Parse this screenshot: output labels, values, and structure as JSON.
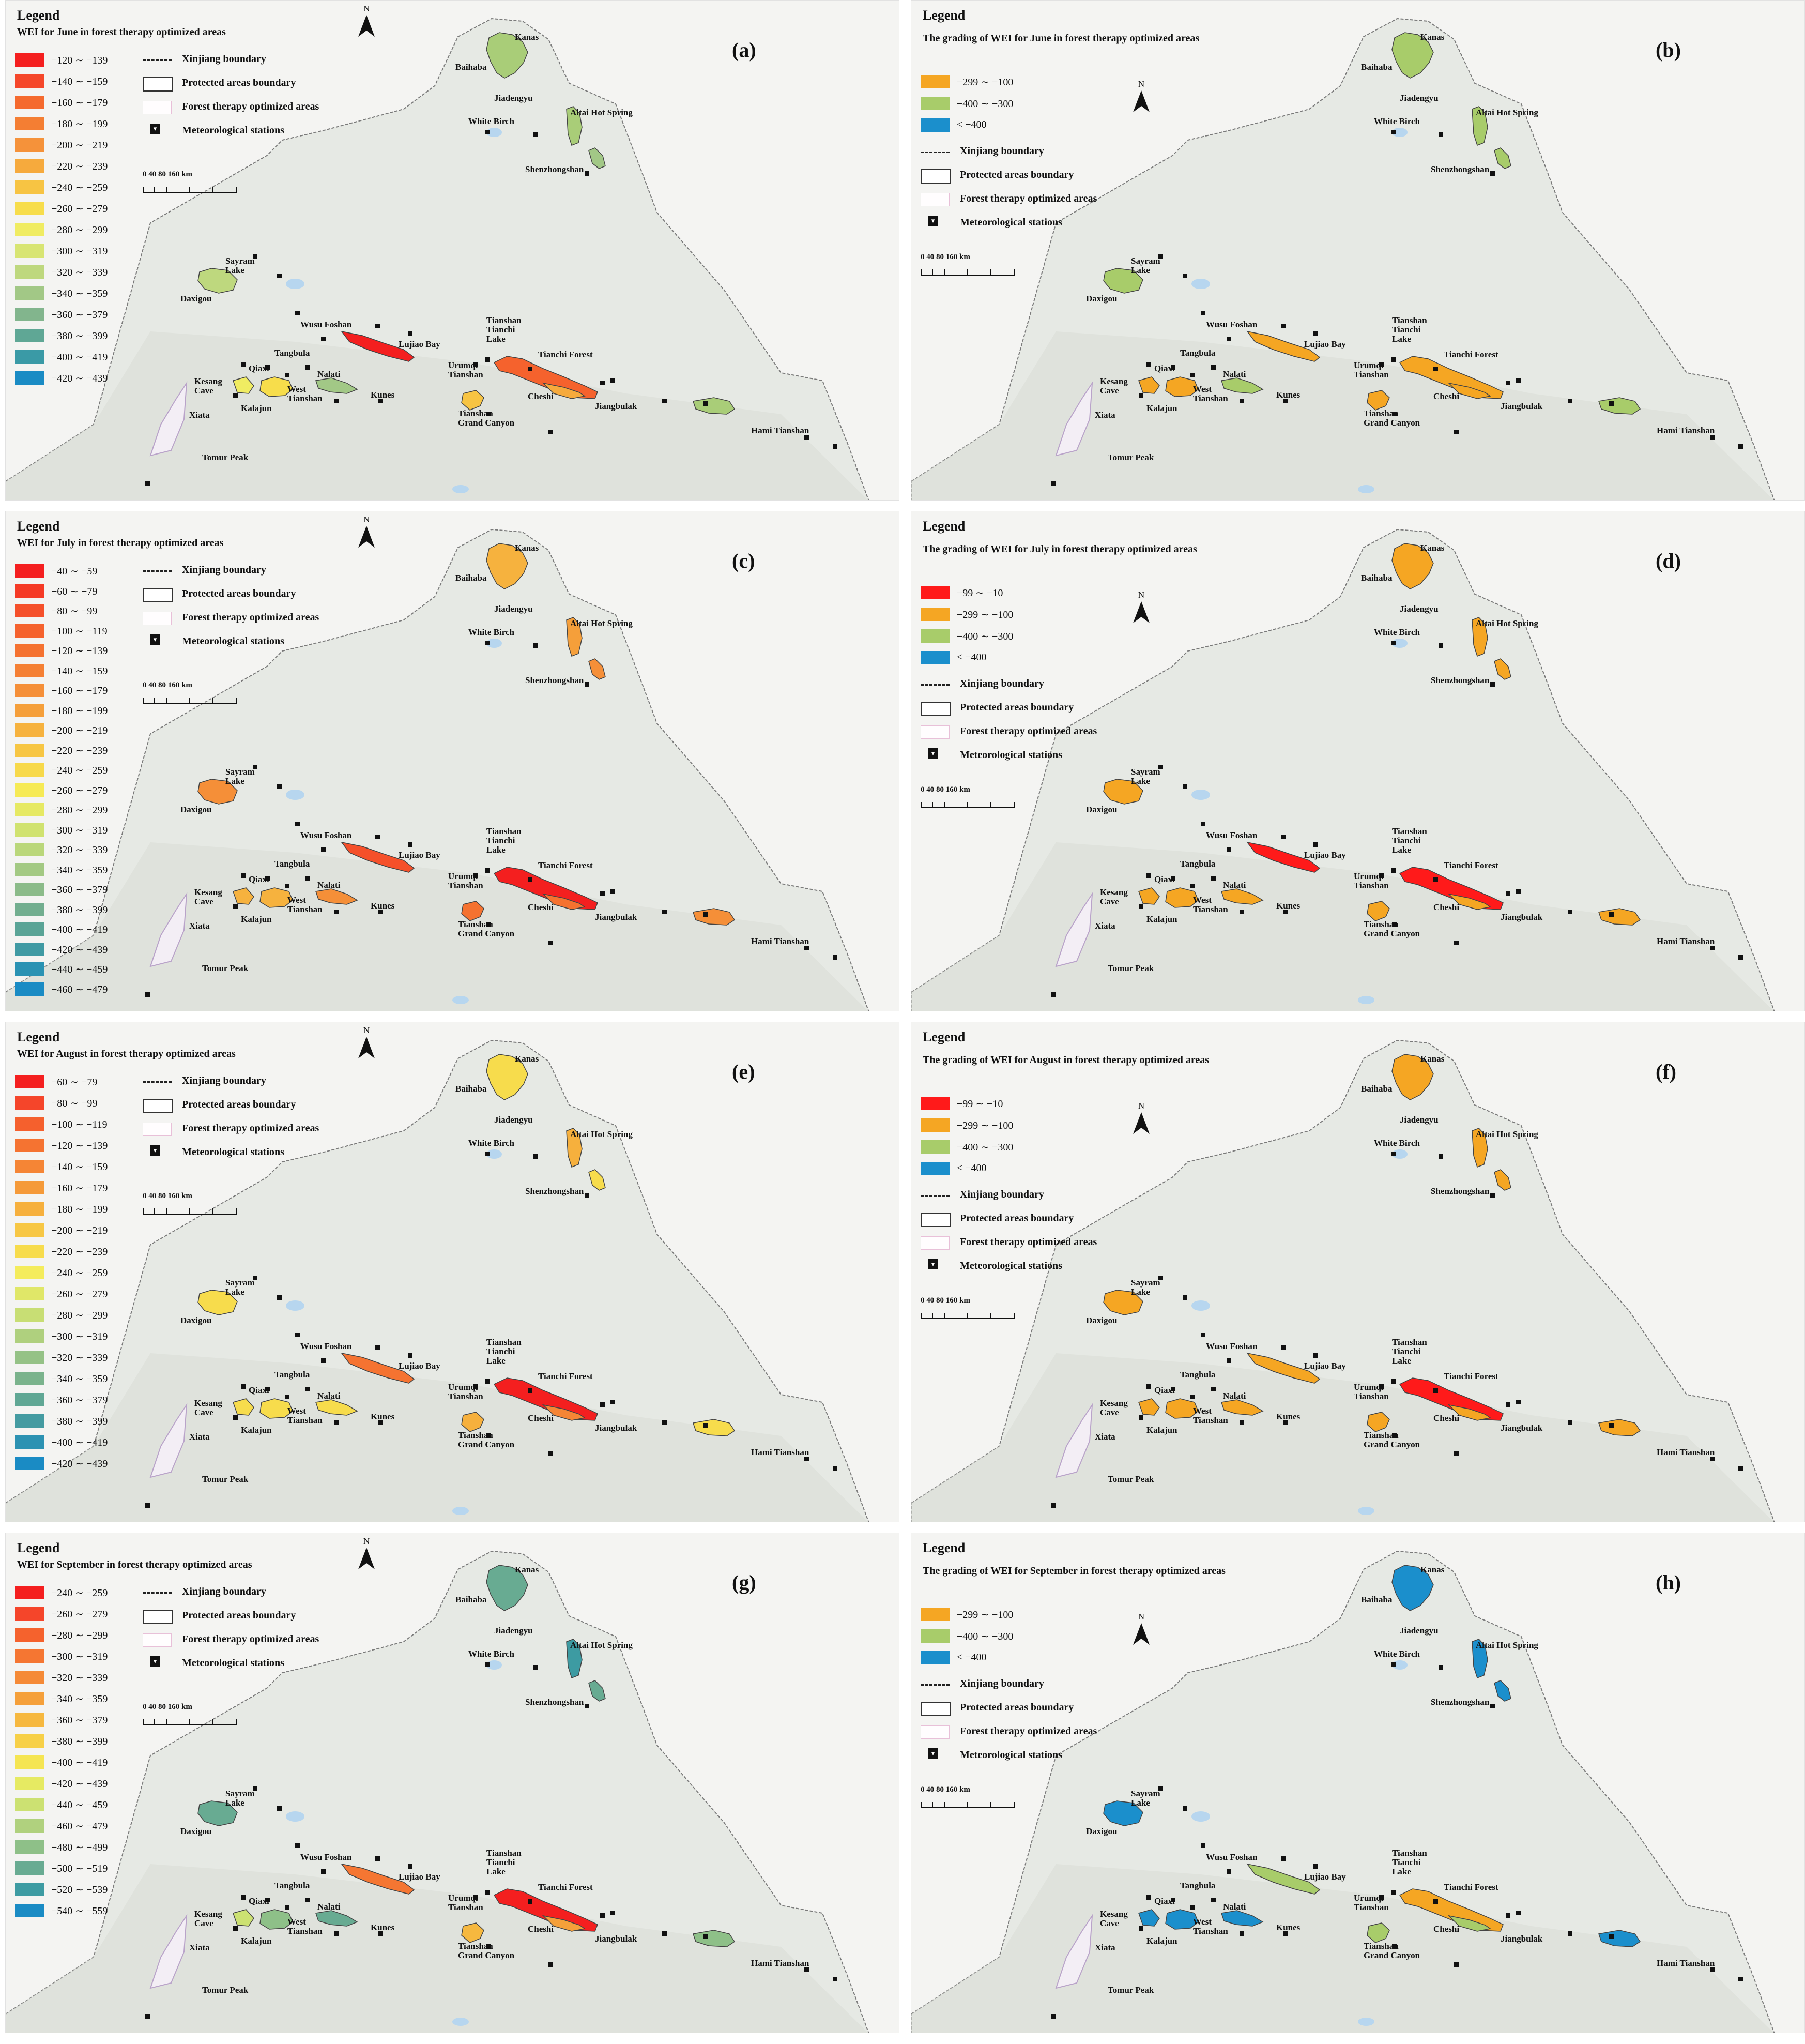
{
  "legend_heading": "Legend",
  "symbols": {
    "boundary": "Xinjiang boundary",
    "protected": "Protected areas boundary",
    "forest": "Forest therapy optimized areas",
    "stations": "Meteorological stations"
  },
  "scale_bar_label": "0   40   80        160 km",
  "north_letter": "N",
  "places": {
    "kanas": "Kanas",
    "baihaba": "Baihaba",
    "jiadengyu": "Jiadengyu",
    "white_birch": "White Birch",
    "altai": "Altai Hot Spring",
    "shenzhongshan": "Shenzhongshan",
    "sayram": "Sayram\nLake",
    "daxigou": "Daxigou",
    "wusu": "Wusu Foshan",
    "lujiao": "Lujiao Bay",
    "tianchi_lake": "Tianshan\nTianchi\nLake",
    "tianchi_forest": "Tianchi Forest",
    "tangbula": "Tangbula",
    "qiaxi": "Qiaxi",
    "kesang": "Kesang\nCave",
    "nalati": "Nalati",
    "west_tianshan": "West\nTianshan",
    "kunes": "Kunes",
    "urumqi": "Urumqi\nTianshan",
    "cheshi": "Cheshi",
    "jiangbulak": "Jiangbulak",
    "grand_canyon": "Tianshan\nGrand Canyon",
    "hami": "Hami Tianshan",
    "xiata": "Xiata",
    "kalajun": "Kalajun",
    "tomur": "Tomur Peak"
  },
  "colors": {
    "red": "#ff1a1a",
    "orange": "#f5a623",
    "green": "#a8cc6a",
    "blue": "#1b8fcc",
    "teal": "#5ea89c"
  },
  "panels": [
    {
      "label": "(a)",
      "kind": "continuous",
      "title": "WEI for June in forest therapy optimized areas",
      "classes": [
        {
          "range": "−120 ∼ −139",
          "color": "#f41f1f"
        },
        {
          "range": "−140 ∼ −159",
          "color": "#f5472a"
        },
        {
          "range": "−160 ∼ −179",
          "color": "#f56a2e"
        },
        {
          "range": "−180 ∼ −199",
          "color": "#f47e33"
        },
        {
          "range": "−200 ∼ −219",
          "color": "#f5923a"
        },
        {
          "range": "−220 ∼ −239",
          "color": "#f6aa3d"
        },
        {
          "range": "−240 ∼ −259",
          "color": "#f7c443"
        },
        {
          "range": "−260 ∼ −279",
          "color": "#f7dd4b"
        },
        {
          "range": "−280 ∼ −299",
          "color": "#f0ec62"
        },
        {
          "range": "−300 ∼ −319",
          "color": "#d8e573"
        },
        {
          "range": "−320 ∼ −339",
          "color": "#bed87e"
        },
        {
          "range": "−340 ∼ −359",
          "color": "#a2c886"
        },
        {
          "range": "−360 ∼ −379",
          "color": "#82b58d"
        },
        {
          "range": "−380 ∼ −399",
          "color": "#5fa795"
        },
        {
          "range": "−400 ∼ −419",
          "color": "#3a9aa6"
        },
        {
          "range": "−420 ∼ −439",
          "color": "#1a8bc4"
        }
      ]
    },
    {
      "label": "(b)",
      "kind": "grading",
      "title": "The grading of WEI for June in forest therapy optimized areas",
      "classes": [
        {
          "range": "−299 ∼ −100",
          "color": "#f5a623"
        },
        {
          "range": "−400 ∼ −300",
          "color": "#a8cc6a"
        },
        {
          "range": "< −400",
          "color": "#1b8fcc"
        }
      ]
    },
    {
      "label": "(c)",
      "kind": "continuous",
      "title": "WEI for July in forest therapy optimized areas",
      "classes": [
        {
          "range": "−40 ∼ −59",
          "color": "#f41f1f"
        },
        {
          "range": "−60 ∼ −79",
          "color": "#f53a25"
        },
        {
          "range": "−80 ∼ −99",
          "color": "#f5502a"
        },
        {
          "range": "−100 ∼ −119",
          "color": "#f5622d"
        },
        {
          "range": "−120 ∼ −139",
          "color": "#f57230"
        },
        {
          "range": "−140 ∼ −159",
          "color": "#f58034"
        },
        {
          "range": "−160 ∼ −179",
          "color": "#f58f38"
        },
        {
          "range": "−180 ∼ −199",
          "color": "#f59f3a"
        },
        {
          "range": "−200 ∼ −219",
          "color": "#f6b23e"
        },
        {
          "range": "−220 ∼ −239",
          "color": "#f7c643"
        },
        {
          "range": "−240 ∼ −259",
          "color": "#f7d94a"
        },
        {
          "range": "−260 ∼ −279",
          "color": "#f6ea55"
        },
        {
          "range": "−280 ∼ −299",
          "color": "#e6e963"
        },
        {
          "range": "−300 ∼ −319",
          "color": "#d0e26f"
        },
        {
          "range": "−320 ∼ −339",
          "color": "#bad77a"
        },
        {
          "range": "−340 ∼ −359",
          "color": "#a3c983"
        },
        {
          "range": "−360 ∼ −379",
          "color": "#8bbb89"
        },
        {
          "range": "−380 ∼ −399",
          "color": "#72ae8f"
        },
        {
          "range": "−400 ∼ −419",
          "color": "#5aa496"
        },
        {
          "range": "−420 ∼ −439",
          "color": "#409aa3"
        },
        {
          "range": "−440 ∼ −459",
          "color": "#2a92b3"
        },
        {
          "range": "−460 ∼ −479",
          "color": "#1a8bc4"
        }
      ]
    },
    {
      "label": "(d)",
      "kind": "grading",
      "title": "The grading of WEI for July in forest therapy optimized areas",
      "classes": [
        {
          "range": "−99 ∼ −10",
          "color": "#ff1a1a"
        },
        {
          "range": "−299 ∼ −100",
          "color": "#f5a623"
        },
        {
          "range": "−400 ∼ −300",
          "color": "#a8cc6a"
        },
        {
          "range": "< −400",
          "color": "#1b8fcc"
        }
      ]
    },
    {
      "label": "(e)",
      "kind": "continuous",
      "title": "WEI for August in forest therapy optimized areas",
      "classes": [
        {
          "range": "−60 ∼ −79",
          "color": "#f41f1f"
        },
        {
          "range": "−80 ∼ −99",
          "color": "#f5452a"
        },
        {
          "range": "−100 ∼ −119",
          "color": "#f5602d"
        },
        {
          "range": "−120 ∼ −139",
          "color": "#f57331"
        },
        {
          "range": "−140 ∼ −159",
          "color": "#f58535"
        },
        {
          "range": "−160 ∼ −179",
          "color": "#f59a39"
        },
        {
          "range": "−180 ∼ −199",
          "color": "#f6b03d"
        },
        {
          "range": "−200 ∼ −219",
          "color": "#f7c744"
        },
        {
          "range": "−220 ∼ −239",
          "color": "#f7dc4c"
        },
        {
          "range": "−240 ∼ −259",
          "color": "#f4ec5c"
        },
        {
          "range": "−260 ∼ −279",
          "color": "#e0e768"
        },
        {
          "range": "−280 ∼ −299",
          "color": "#c8de74"
        },
        {
          "range": "−300 ∼ −319",
          "color": "#afd07e"
        },
        {
          "range": "−320 ∼ −339",
          "color": "#95c286"
        },
        {
          "range": "−340 ∼ −359",
          "color": "#7ab38c"
        },
        {
          "range": "−360 ∼ −379",
          "color": "#60a794"
        },
        {
          "range": "−380 ∼ −399",
          "color": "#449ba1"
        },
        {
          "range": "−400 ∼ −419",
          "color": "#2c92b2"
        },
        {
          "range": "−420 ∼ −439",
          "color": "#1a8bc4"
        }
      ]
    },
    {
      "label": "(f)",
      "kind": "grading",
      "title": "The grading of WEI for August in forest therapy optimized areas",
      "classes": [
        {
          "range": "−99 ∼ −10",
          "color": "#ff1a1a"
        },
        {
          "range": "−299 ∼ −100",
          "color": "#f5a623"
        },
        {
          "range": "−400 ∼ −300",
          "color": "#a8cc6a"
        },
        {
          "range": "< −400",
          "color": "#1b8fcc"
        }
      ]
    },
    {
      "label": "(g)",
      "kind": "continuous",
      "title": "WEI for September  in forest therapy optimized areas",
      "classes": [
        {
          "range": "−240 ∼ −259",
          "color": "#f41f1f"
        },
        {
          "range": "−260 ∼ −279",
          "color": "#f5452a"
        },
        {
          "range": "−280 ∼ −299",
          "color": "#f5622d"
        },
        {
          "range": "−300 ∼ −319",
          "color": "#f57632"
        },
        {
          "range": "−320 ∼ −339",
          "color": "#f58a36"
        },
        {
          "range": "−340 ∼ −359",
          "color": "#f5a03a"
        },
        {
          "range": "−360 ∼ −379",
          "color": "#f6b83f"
        },
        {
          "range": "−380 ∼ −399",
          "color": "#f7d047"
        },
        {
          "range": "−400 ∼ −419",
          "color": "#f5e552"
        },
        {
          "range": "−420 ∼ −439",
          "color": "#e6ea62"
        },
        {
          "range": "−440 ∼ −459",
          "color": "#cce172"
        },
        {
          "range": "−460 ∼ −479",
          "color": "#b0d17e"
        },
        {
          "range": "−480 ∼ −499",
          "color": "#8ec088"
        },
        {
          "range": "−500 ∼ −519",
          "color": "#68ab92"
        },
        {
          "range": "−520 ∼ −539",
          "color": "#3d9ba2"
        },
        {
          "range": "−540 ∼ −559",
          "color": "#1a8bc4"
        }
      ]
    },
    {
      "label": "(h)",
      "kind": "grading",
      "title": "The grading of WEI for September in forest therapy optimized areas",
      "classes": [
        {
          "range": "−299 ∼ −100",
          "color": "#f5a623"
        },
        {
          "range": "−400 ∼ −300",
          "color": "#a8cc6a"
        },
        {
          "range": "< −400",
          "color": "#1b8fcc"
        }
      ]
    }
  ],
  "region_colors": [
    {
      "month": "June",
      "a": {
        "kanas": "#a9cd78",
        "altai": "#a9cd78",
        "shenzhongshan": "#a2c886",
        "daxigou": "#bed87e",
        "wusu": "#f41f1f",
        "tianchi": "#f5622d",
        "cheshi": "#f6aa3d",
        "west": "#f7dd4b",
        "kunes": "#a2c886",
        "grand": "#f7c443",
        "hami": "#a9cd78",
        "qiaxi": "#f0ec62"
      },
      "b": {
        "kanas": "#a8cc6a",
        "altai": "#a8cc6a",
        "shenzhongshan": "#a8cc6a",
        "daxigou": "#a8cc6a",
        "wusu": "#f5a623",
        "tianchi": "#f5a623",
        "cheshi": "#f5a623",
        "west": "#f5a623",
        "kunes": "#a8cc6a",
        "grand": "#f5a623",
        "hami": "#a8cc6a",
        "qiaxi": "#f5a623"
      }
    },
    {
      "month": "July",
      "a": {
        "kanas": "#f6b23e",
        "altai": "#f59f3a",
        "shenzhongshan": "#f58f38",
        "daxigou": "#f58f38",
        "wusu": "#f5502a",
        "tianchi": "#f41f1f",
        "cheshi": "#f57230",
        "west": "#f6b23e",
        "kunes": "#f58f38",
        "grand": "#f57230",
        "hami": "#f58f38",
        "qiaxi": "#f6b23e"
      },
      "b": {
        "kanas": "#f5a623",
        "altai": "#f5a623",
        "shenzhongshan": "#f5a623",
        "daxigou": "#f5a623",
        "wusu": "#ff1a1a",
        "tianchi": "#ff1a1a",
        "cheshi": "#f5a623",
        "west": "#f5a623",
        "kunes": "#f5a623",
        "grand": "#f5a623",
        "hami": "#f5a623",
        "qiaxi": "#f5a623"
      }
    },
    {
      "month": "August",
      "a": {
        "kanas": "#f7dc4c",
        "altai": "#f6b03d",
        "shenzhongshan": "#f7dc4c",
        "daxigou": "#f7dc4c",
        "wusu": "#f57331",
        "tianchi": "#f41f1f",
        "cheshi": "#f58535",
        "west": "#f7dc4c",
        "kunes": "#f7dc4c",
        "grand": "#f6b03d",
        "hami": "#f7dc4c",
        "qiaxi": "#f7dc4c"
      },
      "b": {
        "kanas": "#f5a623",
        "altai": "#f5a623",
        "shenzhongshan": "#f5a623",
        "daxigou": "#f5a623",
        "wusu": "#f5a623",
        "tianchi": "#ff1a1a",
        "cheshi": "#f5a623",
        "west": "#f5a623",
        "kunes": "#f5a623",
        "grand": "#f5a623",
        "hami": "#f5a623",
        "qiaxi": "#f5a623"
      }
    },
    {
      "month": "September",
      "a": {
        "kanas": "#68ab92",
        "altai": "#3d9ba2",
        "shenzhongshan": "#68ab92",
        "daxigou": "#68ab92",
        "wusu": "#f57632",
        "tianchi": "#f41f1f",
        "cheshi": "#f5a03a",
        "west": "#8ec088",
        "kunes": "#68ab92",
        "grand": "#f6b83f",
        "hami": "#8ec088",
        "qiaxi": "#cce172"
      },
      "b": {
        "kanas": "#1b8fcc",
        "altai": "#1b8fcc",
        "shenzhongshan": "#1b8fcc",
        "daxigou": "#1b8fcc",
        "wusu": "#a8cc6a",
        "tianchi": "#f5a623",
        "cheshi": "#a8cc6a",
        "west": "#1b8fcc",
        "kunes": "#1b8fcc",
        "grand": "#a8cc6a",
        "hami": "#1b8fcc",
        "qiaxi": "#1b8fcc"
      }
    }
  ]
}
